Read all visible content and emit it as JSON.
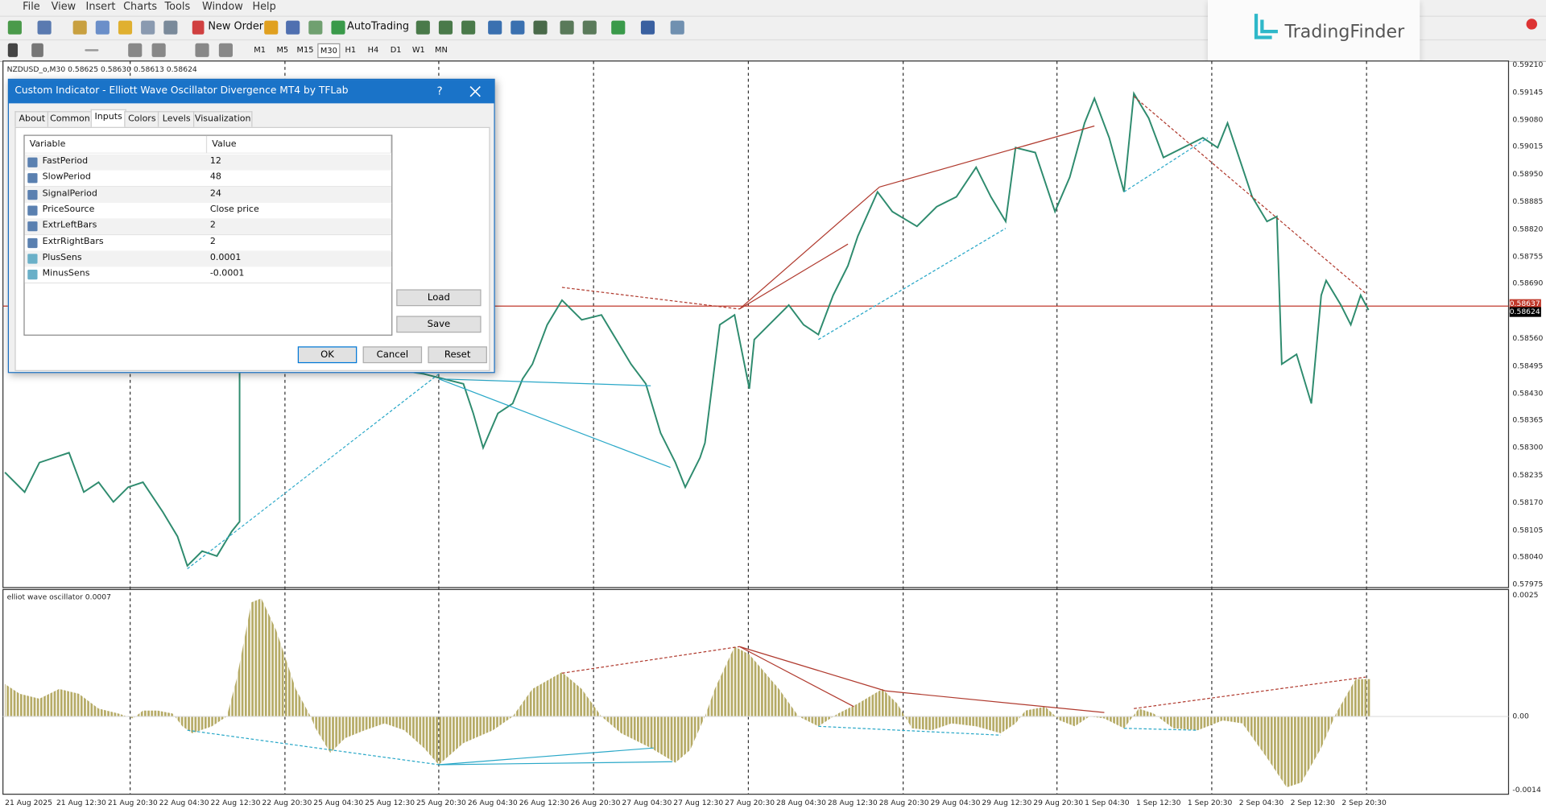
{
  "menu": [
    "File",
    "View",
    "Insert",
    "Charts",
    "Tools",
    "Window",
    "Help"
  ],
  "toolbar": {
    "new_order": "New Order",
    "auto_trading": "AutoTrading",
    "timeframes": [
      "M1",
      "M5",
      "M15",
      "M30",
      "H1",
      "H4",
      "D1",
      "W1",
      "MN"
    ]
  },
  "brand": "TradingFinder",
  "chart": {
    "title": "NZDUSD_o,M30  0.58625 0.58630 0.58613 0.58624",
    "price_labels": [
      "0.59210",
      "0.59145",
      "0.59080",
      "0.59015",
      "0.58950",
      "0.58885",
      "0.58820",
      "0.58755",
      "0.58690",
      "0.58560",
      "0.58495",
      "0.58430",
      "0.58365",
      "0.58300",
      "0.58235",
      "0.58170",
      "0.58105",
      "0.58040",
      "0.57975"
    ],
    "line_price": "0.58637",
    "current_price": "0.58624",
    "indicator_title": "elliot wave oscillator 0.0007",
    "indicator_labels": [
      "0.0025",
      "0.00",
      "-0.0014"
    ],
    "time_labels": [
      "21 Aug 2025",
      "21 Aug 12:30",
      "21 Aug 20:30",
      "22 Aug 04:30",
      "22 Aug 12:30",
      "22 Aug 20:30",
      "25 Aug 04:30",
      "25 Aug 12:30",
      "25 Aug 20:30",
      "26 Aug 04:30",
      "26 Aug 12:30",
      "26 Aug 20:30",
      "27 Aug 04:30",
      "27 Aug 12:30",
      "27 Aug 20:30",
      "28 Aug 04:30",
      "28 Aug 12:30",
      "28 Aug 20:30",
      "29 Aug 04:30",
      "29 Aug 12:30",
      "29 Aug 20:30",
      "1 Sep 04:30",
      "1 Sep 12:30",
      "1 Sep 20:30",
      "2 Sep 04:30",
      "2 Sep 12:30",
      "2 Sep 20:30"
    ]
  },
  "dialog": {
    "title": "Custom Indicator - Elliott Wave Oscillator Divergence MT4 by TFLab",
    "help": "?",
    "tabs": [
      "About",
      "Common",
      "Inputs",
      "Colors",
      "Levels",
      "Visualization"
    ],
    "columns": [
      "Variable",
      "Value"
    ],
    "rows": [
      [
        "FastPeriod",
        "12"
      ],
      [
        "SlowPeriod",
        "48"
      ],
      [
        "SignalPeriod",
        "24"
      ],
      [
        "PriceSource",
        "Close price"
      ],
      [
        "ExtrLeftBars",
        "2"
      ],
      [
        "ExtrRightBars",
        "2"
      ],
      [
        "PlusSens",
        "0.0001"
      ],
      [
        "MinusSens",
        "-0.0001"
      ]
    ],
    "buttons": {
      "load": "Load",
      "save": "Save",
      "ok": "OK",
      "cancel": "Cancel",
      "reset": "Reset"
    }
  }
}
